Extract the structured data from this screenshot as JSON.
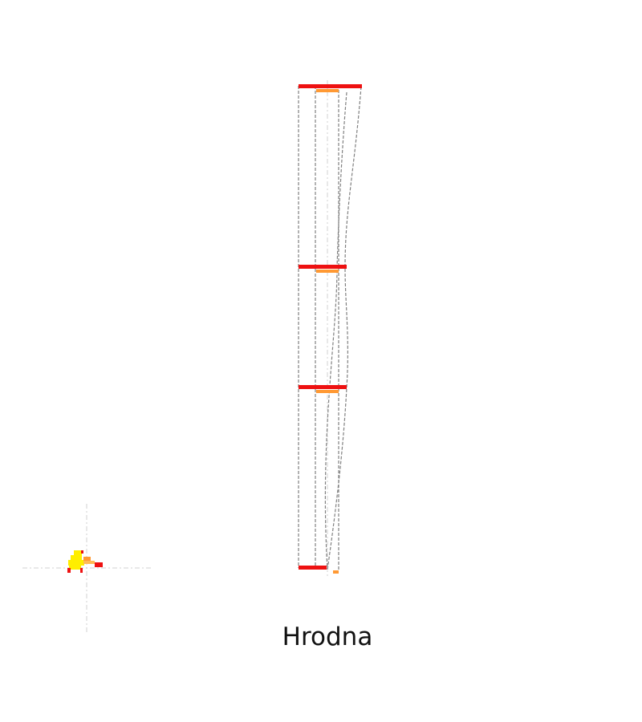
{
  "caption": "Hrodna",
  "colors": {
    "background": "#ffffff",
    "outline": "#808080",
    "guide": "#d0d0d0",
    "primary_bar": "#ee1111",
    "secondary_bar": "#ff9933",
    "glyph_yellow": "#ffee00",
    "glyph_red": "#ee1111",
    "glyph_orange": "#ff9933"
  }
}
